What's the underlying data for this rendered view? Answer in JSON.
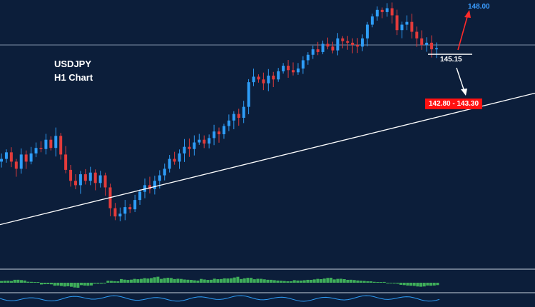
{
  "chart_data": {
    "type": "candlestick",
    "symbol": "USDJPY",
    "timeframe": "H1 Chart",
    "colors": {
      "up": "#2e9df7",
      "down": "#e23b3b",
      "background": "#0c1e3a",
      "trendline": "#ffffff",
      "target_up": "#3a9cff",
      "target_down": "#ff1111",
      "histogram": "#3fae5a"
    },
    "candles_close": [
      146.1,
      146.22,
      146.05,
      145.92,
      146.18,
      146.05,
      146.2,
      146.3,
      146.28,
      146.45,
      146.3,
      146.52,
      146.18,
      145.9,
      145.7,
      145.62,
      145.82,
      145.7,
      145.85,
      145.66,
      145.8,
      145.58,
      145.2,
      145.05,
      145.1,
      145.22,
      145.18,
      145.35,
      145.5,
      145.62,
      145.55,
      145.7,
      145.8,
      145.92,
      146.1,
      146.05,
      146.2,
      146.32,
      146.28,
      146.4,
      146.45,
      146.38,
      146.48,
      146.6,
      146.55,
      146.7,
      146.8,
      146.92,
      146.85,
      147.05,
      147.5,
      147.6,
      147.55,
      147.48,
      147.62,
      147.55,
      147.7,
      147.8,
      147.72,
      147.68,
      147.75,
      147.9,
      148.0,
      148.1,
      148.05,
      148.2,
      148.15,
      148.08,
      148.3,
      148.25,
      148.22,
      148.18,
      148.15,
      148.3,
      148.55,
      148.7,
      148.82,
      148.78,
      148.85,
      148.72,
      148.45,
      148.55,
      148.6,
      148.42,
      148.3,
      148.18,
      148.22,
      148.1,
      148.12
    ],
    "levels": {
      "target_up": "148.00",
      "pivot": "145.15",
      "target_down": "142.80 - 143.30"
    },
    "trendline": {
      "start": 144.9,
      "end": 147.3
    },
    "ylim": [
      144.7,
      149.0
    ],
    "indicator_hist": [
      0.2,
      0.3,
      0.1,
      -0.2,
      -0.4,
      -0.5,
      -0.3,
      -0.1,
      0.2,
      0.4,
      0.5,
      0.6,
      0.5,
      0.4,
      0.3,
      0.4,
      0.5,
      0.6,
      0.5,
      0.4,
      0.3,
      0.2,
      0.3,
      0.4,
      0.5,
      0.4,
      0.3,
      0.2,
      0.1,
      -0.1,
      -0.3,
      -0.4,
      -0.3
    ],
    "grid": false,
    "legend": "none"
  }
}
